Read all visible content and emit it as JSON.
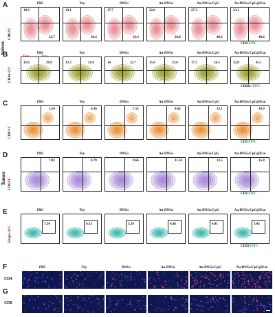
{
  "groups": [
    "PBS",
    "Toy",
    "DNGs",
    "Au-DNGs",
    "Au-DNGs/CpG",
    "Au-DNGs/CpG@Exo"
  ],
  "tissues": {
    "spleen": "Spleen",
    "tumor": "Tumor"
  },
  "colors": {
    "A": "#e8858c",
    "B": "#9aa02a",
    "C": "#e88a2c",
    "D": "#a88ad8",
    "E": "#2fb3a8"
  },
  "panels": {
    "A": {
      "letter": "A",
      "ylabel_pre": "CD8-",
      "ylabel_post": "PE",
      "xlabel_pre": "CD4-",
      "xlabel_post": "FITC",
      "q_ul": [
        "10.9",
        "14.1",
        "17.7",
        "22.6",
        "27.3",
        "33.1"
      ],
      "q_lr": [
        "23.7",
        "30.4",
        "33.4",
        "36.8",
        "40.3",
        "40.6"
      ]
    },
    "B": {
      "letter": "B",
      "ylabel_pre": "CD44-",
      "ylabel_post": "APC",
      "xlabel_pre": "CD62L-",
      "xlabel_post": "FITC",
      "tem": "Tem",
      "tcm": "Tcm",
      "q_ul": [
        "12.6",
        "13.3",
        "14",
        "15.6",
        "17.3",
        "22.0"
      ],
      "q_ur": [
        "20.8",
        "21.6",
        "22.7",
        "23.6",
        "24.5",
        "45.1"
      ]
    },
    "C": {
      "letter": "C",
      "ylabel_pre": "CD8-",
      "ylabel_post": "PE",
      "xlabel_pre": "CD3-",
      "xlabel_post": "FITC",
      "q_ur": [
        "5.54",
        "6.36",
        "7.15",
        "8.65",
        "13.1",
        "14.9"
      ]
    },
    "D": {
      "letter": "D",
      "ylabel_pre": "CD4-",
      "ylabel_post": "PE",
      "xlabel_pre": "CD3-",
      "xlabel_post": "FITC",
      "q_ur": [
        "7.83",
        "8.79",
        "9.66",
        "11.50",
        "13.5",
        "15.8"
      ]
    },
    "E": {
      "letter": "E",
      "ylabel_pre": "Foxp3-",
      "ylabel_post": "APC",
      "xlabel_pre": "CD25-",
      "xlabel_post": "FITC",
      "gate": [
        "7.54",
        "6.33",
        "5.39",
        "4.88",
        "4.01",
        "3.43"
      ]
    },
    "F": {
      "letter": "F",
      "row_label": "CD4",
      "intensity": [
        0.05,
        0.08,
        0.12,
        0.35,
        0.55,
        0.85
      ]
    },
    "G": {
      "letter": "G",
      "row_label": "CD8",
      "intensity": [
        0.05,
        0.07,
        0.1,
        0.12,
        0.2,
        0.3
      ]
    }
  }
}
